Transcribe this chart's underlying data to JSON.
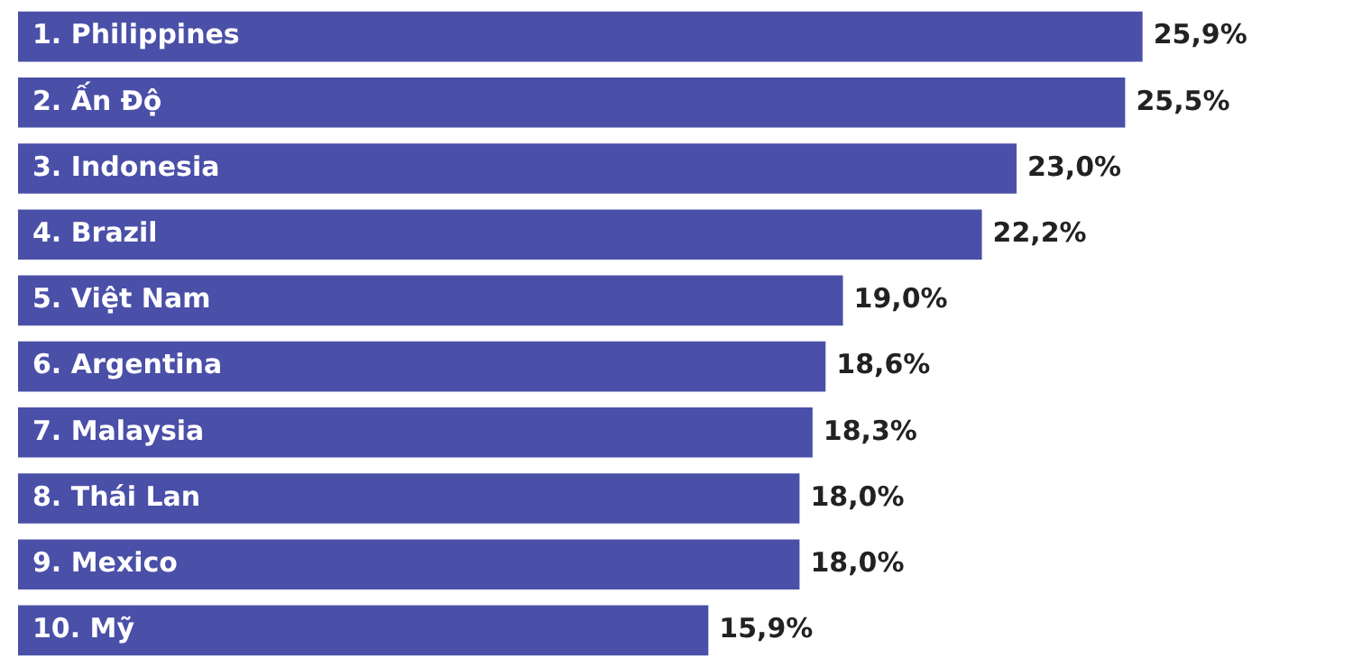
{
  "chart_data": {
    "type": "bar",
    "orientation": "horizontal",
    "categories": [
      "1. Philippines",
      "2. Ấn Độ",
      "3. Indonesia",
      "4. Brazil",
      "5. Việt Nam",
      "6. Argentina",
      "7. Malaysia",
      "8. Thái Lan",
      "9. Mexico",
      "10. Mỹ"
    ],
    "values": [
      25.9,
      25.5,
      23.0,
      22.2,
      19.0,
      18.6,
      18.3,
      18.0,
      18.0,
      15.9
    ],
    "value_labels": [
      "25,9%",
      "25,5%",
      "23,0%",
      "22,2%",
      "19,0%",
      "18,6%",
      "18,3%",
      "18,0%",
      "18,0%",
      "15,9%"
    ],
    "color": "#4a4fa8"
  }
}
